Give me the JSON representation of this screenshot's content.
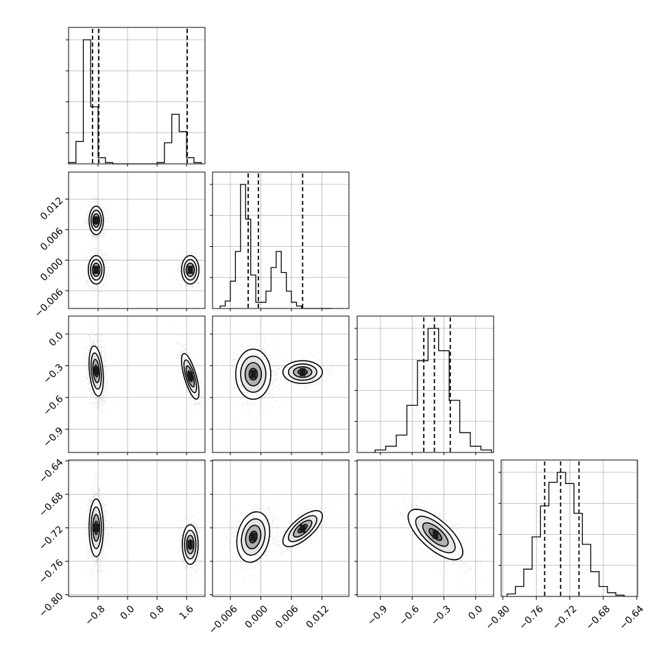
{
  "chart_data": {
    "type": "corner",
    "parameters": 4,
    "panel_grid": "lower-triangle",
    "quantile_lines": "dashed",
    "axes": [
      {
        "lim": [
          -1.6,
          2.1
        ],
        "ticks": [
          -0.8,
          0.0,
          0.8,
          1.6
        ],
        "tick_labels": [
          "−0.8",
          "0.0",
          "0.8",
          "1.6"
        ]
      },
      {
        "lim": [
          -0.0095,
          0.0173
        ],
        "ticks": [
          -0.006,
          0.0,
          0.006,
          0.012
        ],
        "tick_labels": [
          "−0.006",
          "0.000",
          "0.006",
          "0.012"
        ]
      },
      {
        "lim": [
          -1.12,
          0.17
        ],
        "ticks": [
          -0.9,
          -0.6,
          -0.3,
          0.0
        ],
        "tick_labels": [
          "−0.9",
          "−0.6",
          "−0.3",
          "0.0"
        ]
      },
      {
        "lim": [
          -0.802,
          -0.639
        ],
        "ticks": [
          -0.8,
          -0.76,
          -0.72,
          -0.68,
          -0.64
        ],
        "tick_labels": [
          "−0.80",
          "−0.76",
          "−0.72",
          "−0.68",
          "−0.64"
        ]
      }
    ],
    "histograms": [
      {
        "param": 0,
        "bin_edges": [
          -1.6,
          -1.4,
          -1.2,
          -1.0,
          -0.8,
          -0.6,
          -0.4,
          -0.2,
          0.0,
          0.2,
          0.4,
          0.6,
          0.8,
          1.0,
          1.2,
          1.4,
          1.6,
          1.8,
          2.0
        ],
        "counts": [
          0.01,
          0.18,
          1.0,
          0.46,
          0.05,
          0.01,
          0,
          0,
          0,
          0,
          0,
          0,
          0.01,
          0.17,
          0.4,
          0.26,
          0.05,
          0.01
        ],
        "quantiles": [
          -0.95,
          -0.78,
          1.62
        ]
      },
      {
        "param": 1,
        "bin_edges": [
          -0.008,
          -0.007,
          -0.006,
          -0.005,
          -0.004,
          -0.003,
          -0.002,
          -0.001,
          0.0,
          0.001,
          0.002,
          0.003,
          0.004,
          0.005,
          0.006,
          0.007,
          0.008,
          0.009,
          0.01,
          0.011,
          0.012,
          0.013,
          0.014
        ],
        "counts": [
          0.02,
          0.06,
          0.22,
          0.46,
          1.0,
          0.72,
          0.27,
          0.05,
          0.05,
          0.14,
          0.33,
          0.46,
          0.29,
          0.14,
          0.05,
          0.02,
          0,
          0,
          0,
          0,
          0,
          0
        ],
        "quantiles": [
          -0.0025,
          -0.0005,
          0.0082
        ]
      },
      {
        "param": 2,
        "bin_edges": [
          -0.95,
          -0.85,
          -0.75,
          -0.65,
          -0.55,
          -0.45,
          -0.35,
          -0.25,
          -0.15,
          -0.05,
          0.05,
          0.15
        ],
        "counts": [
          0.02,
          0.05,
          0.14,
          0.38,
          0.74,
          1.0,
          0.82,
          0.42,
          0.16,
          0.05,
          0.02
        ],
        "quantiles": [
          -0.49,
          -0.39,
          -0.24
        ]
      },
      {
        "param": 3,
        "bin_edges": [
          -0.795,
          -0.785,
          -0.775,
          -0.765,
          -0.755,
          -0.745,
          -0.735,
          -0.725,
          -0.715,
          -0.705,
          -0.695,
          -0.685,
          -0.675,
          -0.665,
          -0.655
        ],
        "counts": [
          0.02,
          0.08,
          0.22,
          0.48,
          0.73,
          0.92,
          1.0,
          0.91,
          0.67,
          0.42,
          0.2,
          0.08,
          0.03,
          0.01
        ],
        "quantiles": [
          -0.75,
          -0.731,
          -0.709
        ]
      }
    ],
    "pair_plots": [
      {
        "x": 0,
        "y": 1,
        "clusters": [
          {
            "center": [
              -0.85,
              0.0078
            ],
            "sd": [
              0.09,
              0.0013
            ],
            "rho": 0.0,
            "w": 1
          },
          {
            "center": [
              -0.85,
              -0.0019
            ],
            "sd": [
              0.1,
              0.0013
            ],
            "rho": 0.0,
            "w": 1
          },
          {
            "center": [
              1.7,
              -0.0019
            ],
            "sd": [
              0.11,
              0.0013
            ],
            "rho": 0.0,
            "w": 0.7
          }
        ]
      },
      {
        "x": 0,
        "y": 2,
        "clusters": [
          {
            "center": [
              -0.85,
              -0.35
            ],
            "sd": [
              0.09,
              0.11
            ],
            "rho": -0.3,
            "w": 2
          },
          {
            "center": [
              1.7,
              -0.4
            ],
            "sd": [
              0.11,
              0.1
            ],
            "rho": -0.7,
            "w": 0.7
          }
        ]
      },
      {
        "x": 0,
        "y": 3,
        "clusters": [
          {
            "center": [
              -0.85,
              -0.72
            ],
            "sd": [
              0.09,
              0.016
            ],
            "rho": 0.0,
            "w": 2
          },
          {
            "center": [
              1.7,
              -0.74
            ],
            "sd": [
              0.1,
              0.011
            ],
            "rho": 0.0,
            "w": 0.7
          }
        ]
      },
      {
        "x": 1,
        "y": 2,
        "clusters": [
          {
            "center": [
              -0.0015,
              -0.38
            ],
            "sd": [
              0.0016,
              0.11
            ],
            "rho": 0.0,
            "w": 1
          },
          {
            "center": [
              0.0082,
              -0.36
            ],
            "sd": [
              0.0018,
              0.05
            ],
            "rho": 0.0,
            "w": 0.5
          }
        ]
      },
      {
        "x": 1,
        "y": 3,
        "clusters": [
          {
            "center": [
              -0.0015,
              -0.731
            ],
            "sd": [
              0.0015,
              0.014
            ],
            "rho": 0.2,
            "w": 1
          },
          {
            "center": [
              0.0082,
              -0.721
            ],
            "sd": [
              0.0018,
              0.01
            ],
            "rho": 0.7,
            "w": 0.5
          }
        ]
      },
      {
        "x": 2,
        "y": 3,
        "clusters": [
          {
            "center": [
              -0.38,
              -0.728
            ],
            "sd": [
              0.12,
              0.014
            ],
            "rho": -0.7,
            "w": 1
          }
        ]
      }
    ]
  }
}
